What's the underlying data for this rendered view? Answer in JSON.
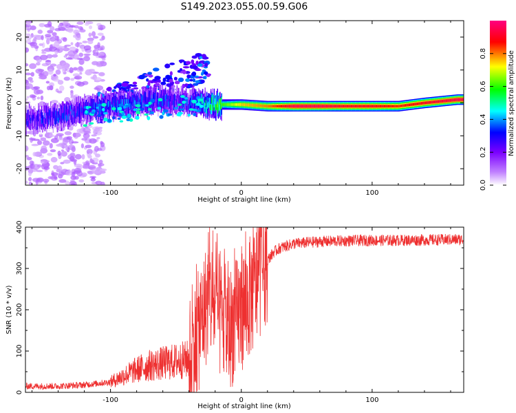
{
  "title": "S149.2023.055.00.59.G06",
  "chart_data": [
    {
      "type": "heatmap",
      "xlabel": "Height of straight line (km)",
      "ylabel": "Frequency (Hz)",
      "xlim": [
        -165,
        170
      ],
      "ylim": [
        -25,
        25
      ],
      "xticks": [
        -100,
        0,
        100
      ],
      "yticks": [
        -20,
        -10,
        0,
        10,
        20
      ],
      "colorbar": {
        "label": "Normalized spectral amplitude",
        "ticks": [
          0.0,
          0.2,
          0.4,
          0.6,
          0.8
        ],
        "range": [
          0,
          1
        ],
        "colormap": [
          "#ffffff",
          "#7b00ff",
          "#0000ff",
          "#00ffff",
          "#00ff00",
          "#ffff00",
          "#ff0000",
          "#ff0080"
        ]
      },
      "ridge": [
        {
          "x": -160,
          "y": -5,
          "level": 0.25
        },
        {
          "x": -140,
          "y": -4,
          "level": 0.3
        },
        {
          "x": -120,
          "y": -2,
          "level": 0.3
        },
        {
          "x": -100,
          "y": -1,
          "level": 0.35
        },
        {
          "x": -80,
          "y": 0,
          "level": 0.35
        },
        {
          "x": -60,
          "y": 1,
          "level": 0.3
        },
        {
          "x": -40,
          "y": 0,
          "level": 0.3
        },
        {
          "x": -20,
          "y": -0.5,
          "level": 0.55
        },
        {
          "x": 0,
          "y": -0.5,
          "level": 0.75
        },
        {
          "x": 20,
          "y": -1,
          "level": 0.8
        },
        {
          "x": 40,
          "y": -1,
          "level": 0.95
        },
        {
          "x": 60,
          "y": -1,
          "level": 0.95
        },
        {
          "x": 80,
          "y": -1,
          "level": 0.9
        },
        {
          "x": 100,
          "y": -1,
          "level": 0.9
        },
        {
          "x": 120,
          "y": -1,
          "level": 0.85
        },
        {
          "x": 140,
          "y": 0,
          "level": 0.9
        },
        {
          "x": 165,
          "y": 1,
          "level": 0.95
        }
      ]
    },
    {
      "type": "line",
      "xlabel": "Height of straight line (km)",
      "ylabel": "SNR (10 * v/v)",
      "xlim": [
        -165,
        170
      ],
      "ylim": [
        0,
        400
      ],
      "xticks": [
        -100,
        0,
        100
      ],
      "yticks": [
        0,
        100,
        200,
        300,
        400
      ],
      "color": "#ee3030",
      "series": [
        {
          "values": [
            [
              -165,
              15
            ],
            [
              -140,
              15
            ],
            [
              -120,
              18
            ],
            [
              -100,
              25
            ],
            [
              -90,
              40
            ],
            [
              -80,
              55
            ],
            [
              -70,
              65
            ],
            [
              -60,
              70
            ],
            [
              -50,
              75
            ],
            [
              -40,
              80
            ],
            [
              -35,
              120
            ],
            [
              -30,
              180
            ],
            [
              -25,
              230
            ],
            [
              -20,
              210
            ],
            [
              -15,
              170
            ],
            [
              -10,
              150
            ],
            [
              -5,
              170
            ],
            [
              0,
              200
            ],
            [
              5,
              220
            ],
            [
              10,
              250
            ],
            [
              15,
              290
            ],
            [
              20,
              320
            ],
            [
              25,
              340
            ],
            [
              30,
              350
            ],
            [
              40,
              360
            ],
            [
              60,
              365
            ],
            [
              80,
              367
            ],
            [
              100,
              368
            ],
            [
              120,
              368
            ],
            [
              140,
              369
            ],
            [
              170,
              370
            ]
          ]
        }
      ]
    }
  ]
}
